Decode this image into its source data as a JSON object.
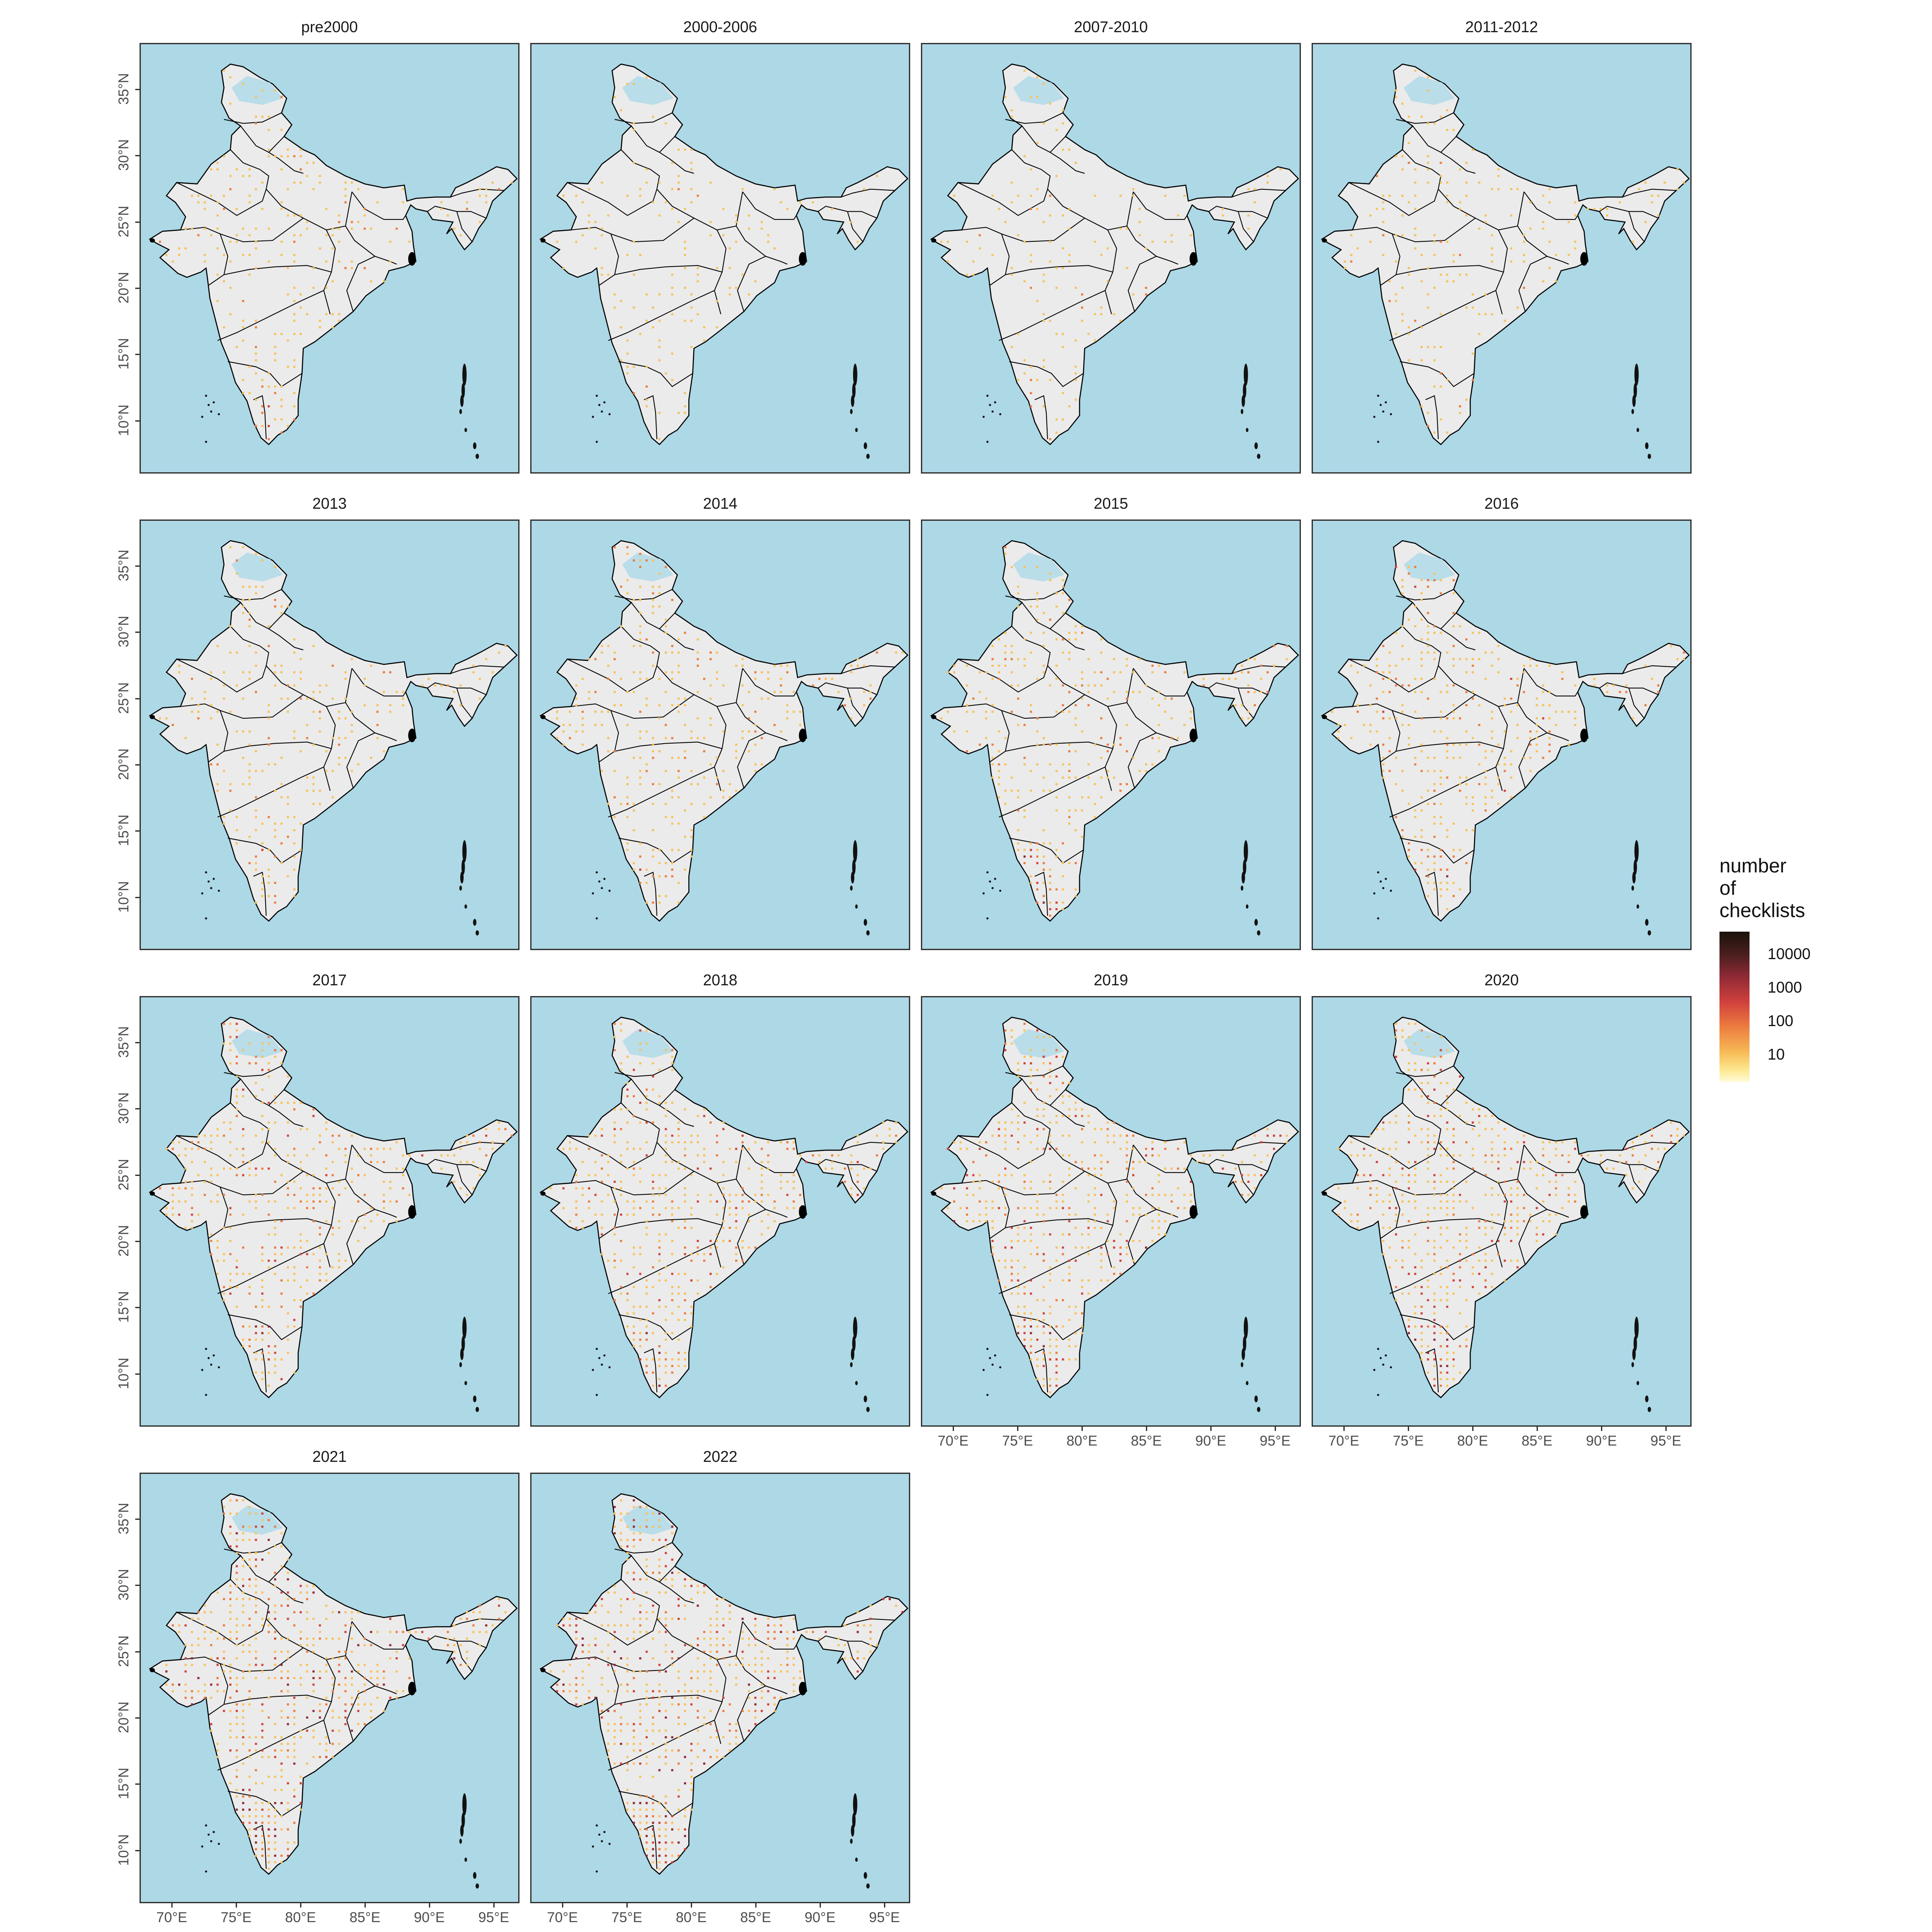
{
  "figure": {
    "panels": [
      {
        "title": "pre2000",
        "intensity": 0.25
      },
      {
        "title": "2000-2006",
        "intensity": 0.12
      },
      {
        "title": "2007-2010",
        "intensity": 0.12
      },
      {
        "title": "2011-2012",
        "intensity": 0.2
      },
      {
        "title": "2013",
        "intensity": 0.3
      },
      {
        "title": "2014",
        "intensity": 0.4
      },
      {
        "title": "2015",
        "intensity": 0.5
      },
      {
        "title": "2016",
        "intensity": 0.55
      },
      {
        "title": "2017",
        "intensity": 0.65
      },
      {
        "title": "2018",
        "intensity": 0.75
      },
      {
        "title": "2019",
        "intensity": 0.85
      },
      {
        "title": "2020",
        "intensity": 0.8
      },
      {
        "title": "2021",
        "intensity": 0.95
      },
      {
        "title": "2022",
        "intensity": 1.0
      }
    ],
    "x_ticks": [
      "70°E",
      "75°E",
      "80°E",
      "85°E",
      "90°E",
      "95°E"
    ],
    "y_ticks": [
      "35°N",
      "30°N",
      "25°N",
      "20°N",
      "15°N",
      "10°N"
    ],
    "legend": {
      "title_lines": [
        "number",
        "of",
        "checklists"
      ],
      "labels": [
        "10000",
        "1000",
        "100",
        "10"
      ],
      "scale": "log"
    },
    "colors": {
      "sea": "#add8e6",
      "land": "#ebebeb",
      "border": "#000000",
      "low": "#fffbd9",
      "high": "#1b120c"
    }
  }
}
